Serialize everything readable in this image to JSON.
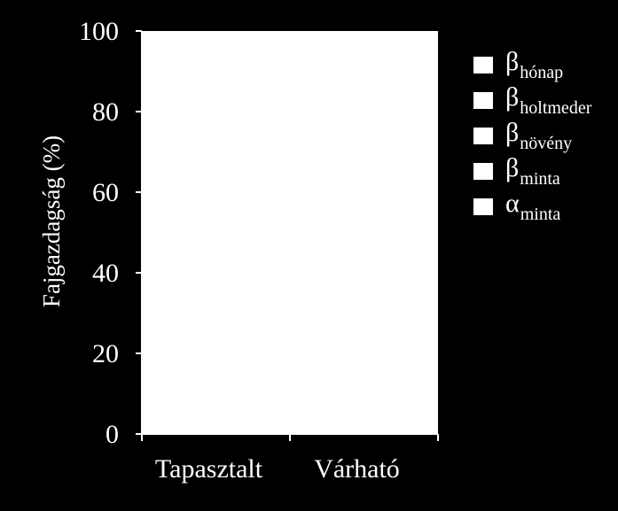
{
  "chart_data": {
    "type": "bar",
    "stacked": true,
    "categories": [
      "Tapasztalt",
      "Várható"
    ],
    "ylabel": "Fajgazdagság  (%)",
    "ylim": [
      0,
      100
    ],
    "yticks": [
      "0",
      "20",
      "40",
      "60",
      "80",
      "100"
    ],
    "legend_position": "right",
    "series": [
      {
        "name_symbol": "β",
        "name_sub": "hónap",
        "values": [
          null,
          null
        ],
        "color": "#ffffff"
      },
      {
        "name_symbol": "β",
        "name_sub": "holtmeder",
        "values": [
          null,
          null
        ],
        "color": "#ffffff"
      },
      {
        "name_symbol": "β",
        "name_sub": "növény",
        "values": [
          null,
          null
        ],
        "color": "#ffffff"
      },
      {
        "name_symbol": "β",
        "name_sub": "minta",
        "values": [
          null,
          null
        ],
        "color": "#ffffff"
      },
      {
        "name_symbol": "α",
        "name_sub": "minta",
        "values": [
          null,
          null
        ],
        "color": "#ffffff"
      }
    ],
    "plot_fill": "#ffffff",
    "background": "#000000"
  }
}
